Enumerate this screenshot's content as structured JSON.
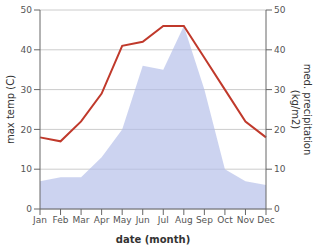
{
  "chart_data": {
    "type": "line",
    "categories": [
      "Jan",
      "Feb",
      "Mar",
      "Apr",
      "May",
      "Jun",
      "Jul",
      "Aug",
      "Sep",
      "Oct",
      "Nov",
      "Dec"
    ],
    "series": [
      {
        "type": "area",
        "axis": "y2",
        "color": "#b0bce8",
        "values": [
          7,
          8,
          8,
          13,
          20,
          36,
          35,
          46,
          30,
          10,
          7,
          6
        ]
      },
      {
        "type": "line",
        "color": "#c0392b",
        "values": [
          18,
          17,
          22,
          29,
          41,
          42,
          46,
          46,
          38,
          30,
          22,
          18
        ]
      }
    ],
    "xlabel": "date (month)",
    "ylabel": "max temp (C)",
    "y2label": "med. precipitation\n(kg/m2)",
    "ylim": [
      0,
      50
    ],
    "yticks": [
      0,
      10,
      20,
      30,
      40,
      50
    ],
    "y2lim": [
      0,
      50
    ],
    "y2ticks": [
      0,
      10,
      20,
      30,
      40,
      50
    ],
    "grid": true
  }
}
